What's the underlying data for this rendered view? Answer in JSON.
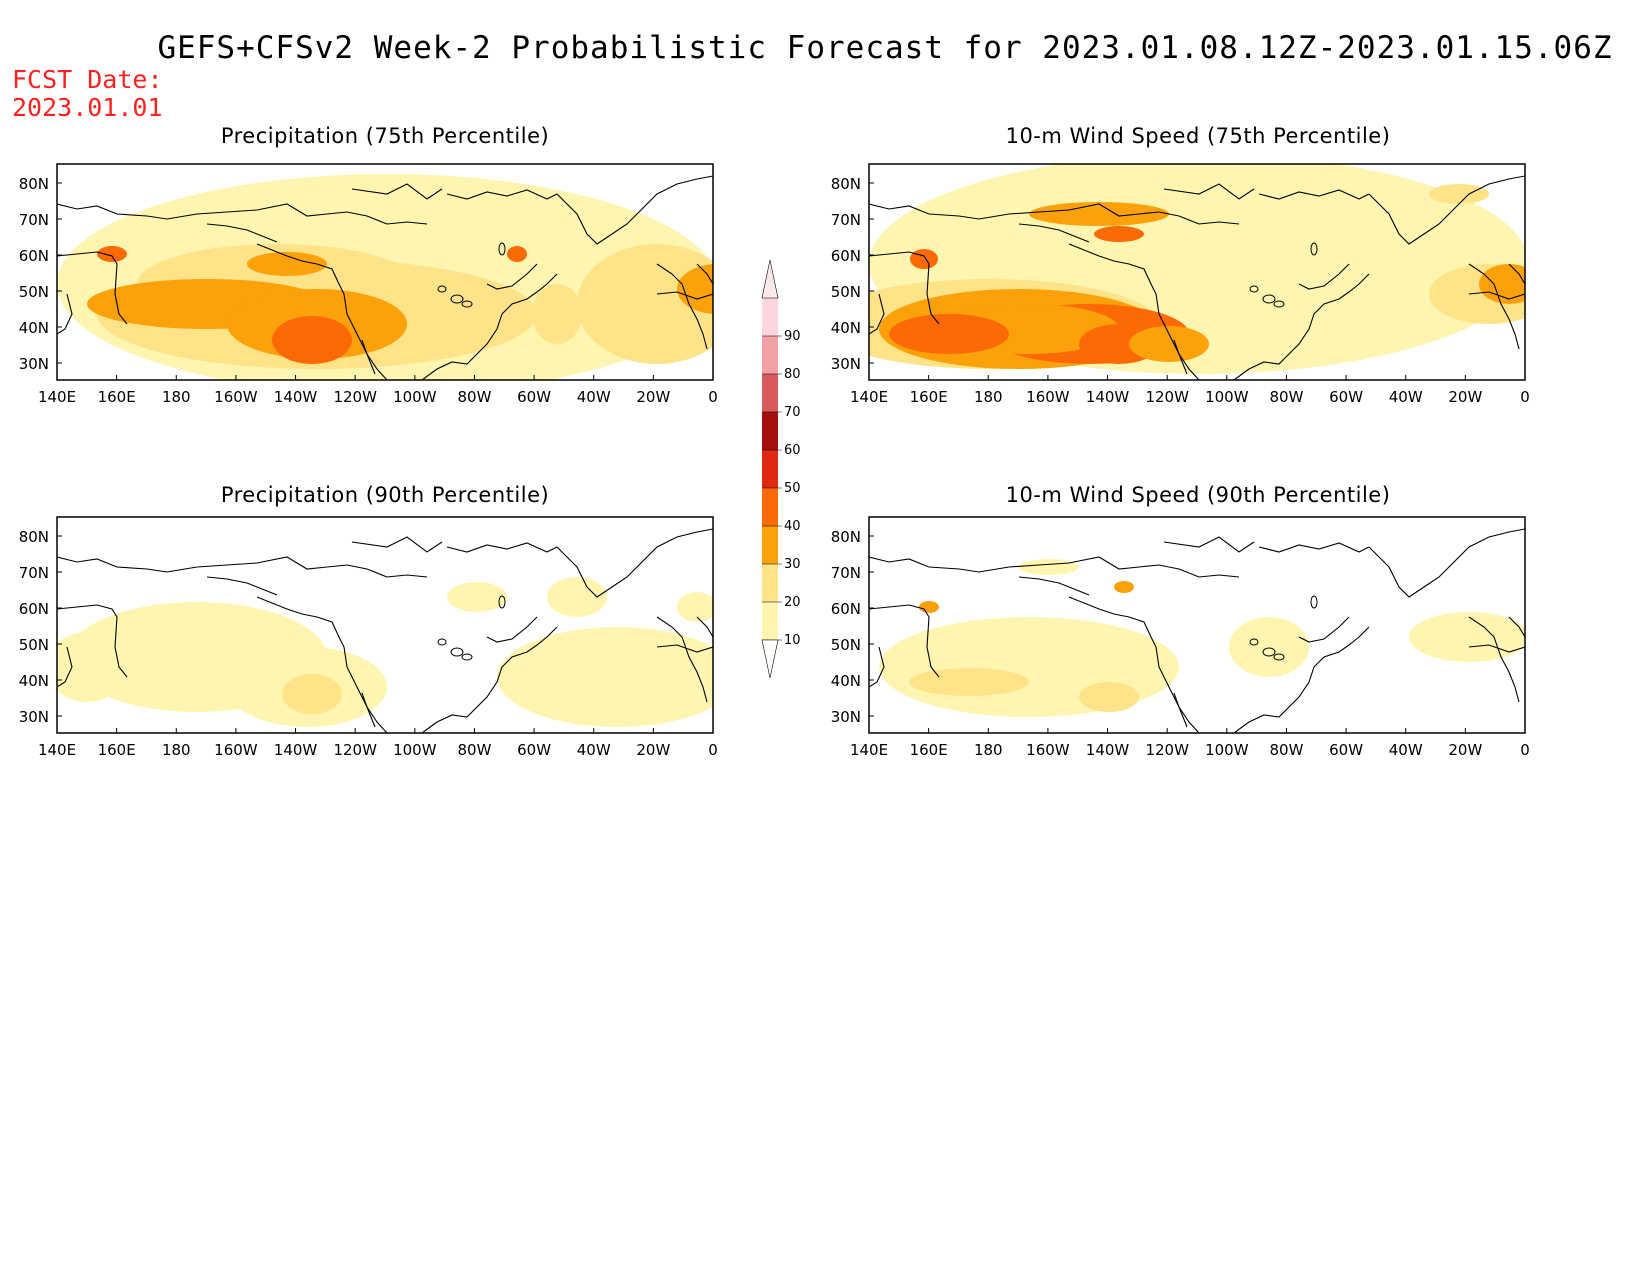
{
  "title": "GEFS+CFSv2 Week-2 Probabilistic Forecast for 2023.01.08.12Z-2023.01.15.06Z",
  "fcst_label": "FCST Date:",
  "fcst_date": "2023.01.01",
  "panels": [
    {
      "title": "Precipitation (75th Percentile)",
      "variable": "precip",
      "pct": 75
    },
    {
      "title": "10-m Wind Speed (75th Percentile)",
      "variable": "wind",
      "pct": 75
    },
    {
      "title": "Precipitation (90th Percentile)",
      "variable": "precip",
      "pct": 90
    },
    {
      "title": "10-m Wind Speed (90th Percentile)",
      "variable": "wind",
      "pct": 90
    }
  ],
  "x_ticks": [
    "140E",
    "160E",
    "180",
    "160W",
    "140W",
    "120W",
    "100W",
    "80W",
    "60W",
    "40W",
    "20W",
    "0"
  ],
  "y_ticks": [
    "80N",
    "70N",
    "60N",
    "50N",
    "40N",
    "30N"
  ],
  "colorbar": {
    "levels": [
      "10",
      "20",
      "30",
      "40",
      "50",
      "60",
      "70",
      "80",
      "90"
    ],
    "colors": [
      "#fef6b0",
      "#fee389",
      "#fca10a",
      "#fb6a04",
      "#e02810",
      "#a50f0f",
      "#d85a5a",
      "#f0a0a6",
      "#fcd6dc"
    ]
  }
}
